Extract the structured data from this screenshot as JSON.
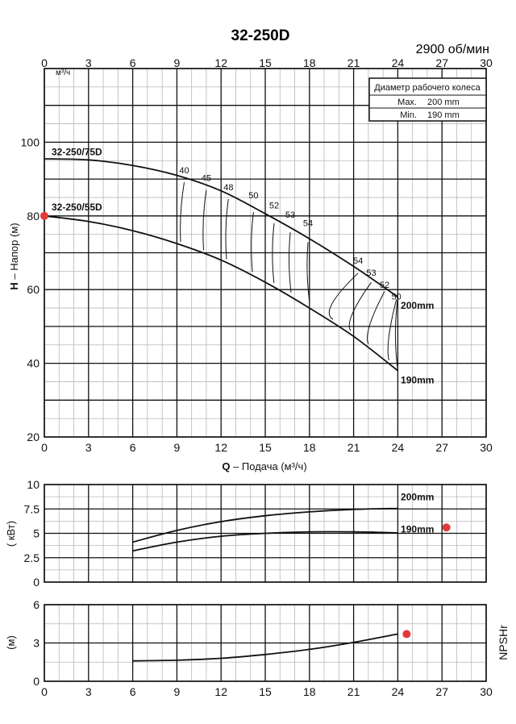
{
  "header": {
    "title": "32-250D",
    "speed": "2900 об/мин"
  },
  "impeller_box": {
    "heading": "Диаметр рабочего колеса",
    "max_label": "Max.",
    "max_value": "200 mm",
    "min_label": "Min.",
    "min_value": "190 mm"
  },
  "axes": {
    "top_unit": "м³/ч",
    "x_label_bold": "Q",
    "x_label_rest": " – Подача (м³/ч)",
    "y_head_label_bold": "H",
    "y_head_label_rest": " – Напор (м)",
    "y_power_label": "( кВт)",
    "y_npsh_label": "(м)",
    "npsh_side_label": "NPSHr"
  },
  "chart_data": [
    {
      "name": "head",
      "type": "line",
      "xlim": [
        0,
        30
      ],
      "ylim": [
        20,
        120
      ],
      "x_ticks": [
        "0",
        "3",
        "6",
        "9",
        "12",
        "15",
        "18",
        "21",
        "24",
        "27",
        "30"
      ],
      "top_x_ticks": [
        "0",
        "3",
        "6",
        "9",
        "12",
        "15",
        "18",
        "21",
        "24",
        "27",
        "30"
      ],
      "y_ticks": [
        "20",
        "40",
        "60",
        "80",
        "100"
      ],
      "series": [
        {
          "name": "200mm",
          "model": "32-250/75D",
          "x": [
            0,
            3,
            6,
            9,
            12,
            15,
            18,
            21,
            24
          ],
          "y": [
            95.5,
            95.2,
            93.7,
            91.0,
            86.8,
            80.6,
            73.8,
            66.3,
            58.0
          ]
        },
        {
          "name": "190mm",
          "model": "32-250/55D",
          "x": [
            0,
            3,
            6,
            9,
            12,
            15,
            18,
            21,
            24
          ],
          "y": [
            80.0,
            78.5,
            76.0,
            72.5,
            68.0,
            62.0,
            55.0,
            47.3,
            38.0
          ]
        }
      ],
      "efficiency_labels": [
        "40",
        "45",
        "48",
        "50",
        "52",
        "53",
        "54",
        "54",
        "53",
        "52",
        "50"
      ],
      "efficiency_label_q": [
        9.5,
        11.0,
        12.5,
        14.2,
        15.6,
        16.7,
        17.9,
        21.3,
        22.2,
        23.1,
        23.9
      ],
      "efficiency_label_h": [
        91.5,
        89.5,
        87.0,
        84.8,
        82.0,
        79.5,
        77.2,
        67.0,
        63.8,
        60.5,
        57.3
      ],
      "markers": [
        {
          "x": 0,
          "y": 80
        }
      ]
    },
    {
      "name": "power",
      "type": "line",
      "xlim": [
        0,
        30
      ],
      "ylim": [
        0,
        10
      ],
      "y_ticks": [
        "0",
        "2.5",
        "5",
        "7.5",
        "10"
      ],
      "series": [
        {
          "name": "200mm",
          "x": [
            6,
            9,
            12,
            15,
            18,
            21,
            24
          ],
          "y": [
            4.1,
            5.3,
            6.2,
            6.8,
            7.2,
            7.45,
            7.55
          ]
        },
        {
          "name": "190mm",
          "x": [
            6,
            9,
            12,
            15,
            18,
            21,
            24
          ],
          "y": [
            3.2,
            4.1,
            4.7,
            5.0,
            5.15,
            5.15,
            5.05
          ]
        }
      ],
      "markers": [
        {
          "x": 27.3,
          "y": 5.6
        }
      ]
    },
    {
      "name": "npsh",
      "type": "line",
      "xlim": [
        0,
        30
      ],
      "ylim": [
        0,
        6
      ],
      "x_ticks": [
        "0",
        "3",
        "6",
        "9",
        "12",
        "15",
        "18",
        "21",
        "24",
        "27",
        "30"
      ],
      "y_ticks": [
        "0",
        "3",
        "6"
      ],
      "series": [
        {
          "name": "NPSHr",
          "x": [
            6,
            9,
            12,
            15,
            18,
            21,
            24
          ],
          "y": [
            1.6,
            1.65,
            1.8,
            2.1,
            2.5,
            3.05,
            3.7
          ]
        }
      ],
      "markers": [
        {
          "x": 24.6,
          "y": 3.7
        }
      ]
    }
  ],
  "colors": {
    "curve": "#111111",
    "major_grid": "#111111",
    "minor_grid": "#b8b8b8",
    "marker": "#e23a3a"
  }
}
